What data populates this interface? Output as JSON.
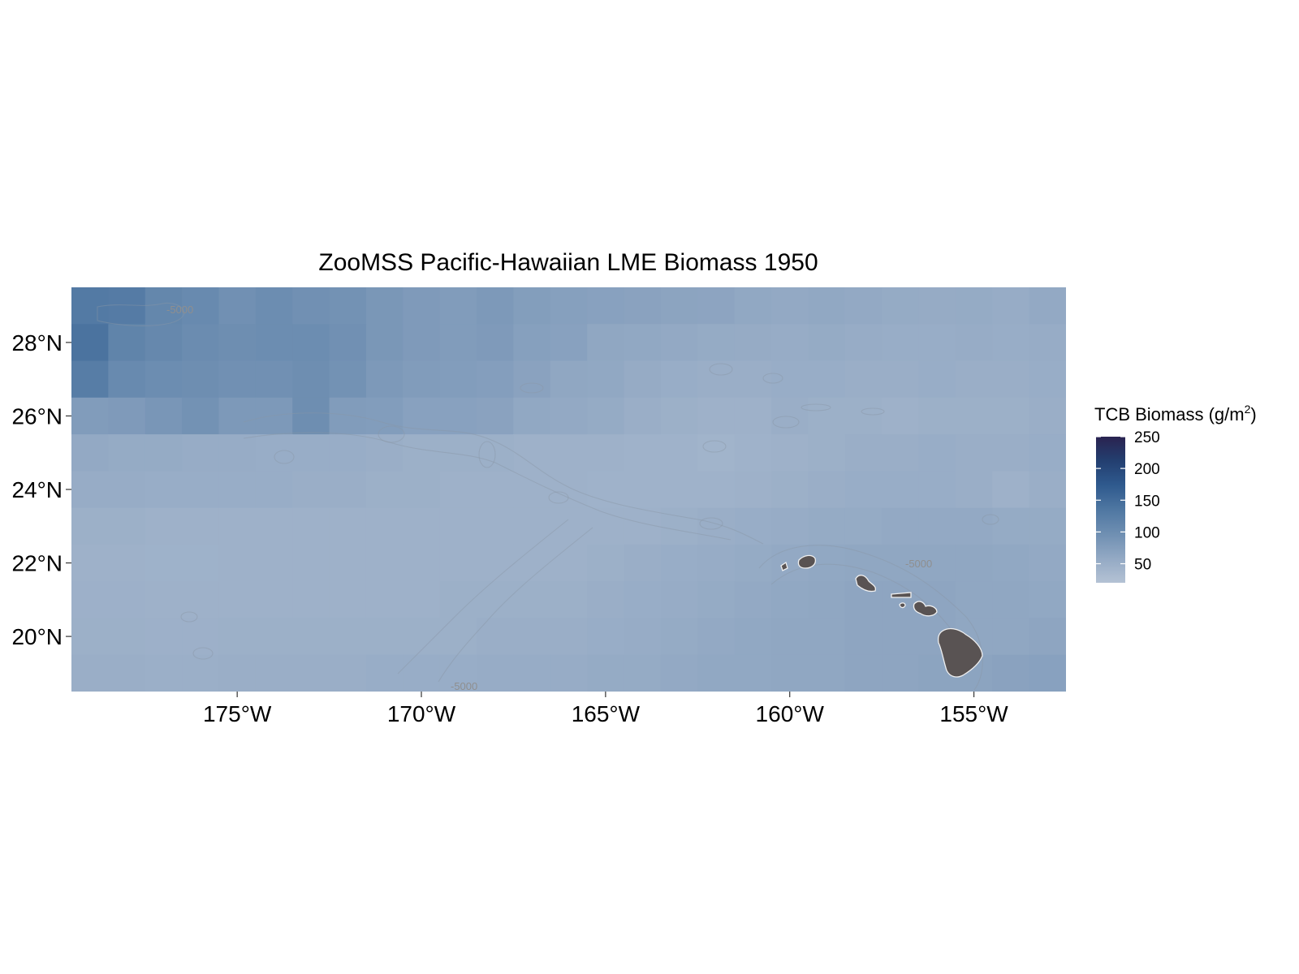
{
  "chart_data": {
    "type": "heatmap",
    "title": "ZooMSS Pacific-Hawaiian LME Biomass 1950",
    "xlabel": "",
    "ylabel": "",
    "xlim": [
      -179.5,
      -152.5
    ],
    "ylim": [
      18.5,
      29.5
    ],
    "x_ticks": [
      -175,
      -170,
      -165,
      -160,
      -155
    ],
    "x_tick_labels": [
      "175°W",
      "170°W",
      "165°W",
      "160°W",
      "155°W"
    ],
    "y_ticks": [
      20,
      22,
      24,
      26,
      28
    ],
    "y_tick_labels": [
      "20°N",
      "22°N",
      "24°N",
      "26°N",
      "28°N"
    ],
    "grid": false,
    "legend": {
      "title": "TCB Biomass (g/m",
      "title_superscript": "2",
      "title_suffix": ")",
      "placement": "right",
      "range": [
        20,
        250
      ],
      "breaks": [
        50,
        100,
        150,
        200,
        250
      ],
      "break_labels": [
        "50",
        "100",
        "150",
        "200",
        "250"
      ],
      "colors": [
        "#b4c2d4",
        "#93a9c4",
        "#6f8fb2",
        "#4f77a2",
        "#2f5a8e",
        "#233f70",
        "#2a2350"
      ]
    },
    "contour_labels": [
      "-5000",
      "-5000",
      "-5000"
    ],
    "land_color": "#595353",
    "cell_size_deg": 1,
    "rows": [
      {
        "lat": 29,
        "values": [
          130,
          128,
          110,
          105,
          95,
          100,
          95,
          92,
          85,
          80,
          78,
          82,
          75,
          72,
          70,
          68,
          66,
          65,
          60,
          58,
          60,
          58,
          56,
          55,
          56,
          54,
          58
        ]
      },
      {
        "lat": 28,
        "values": [
          140,
          115,
          108,
          102,
          98,
          100,
          100,
          95,
          85,
          80,
          78,
          80,
          72,
          70,
          62,
          60,
          58,
          56,
          55,
          54,
          56,
          54,
          52,
          52,
          54,
          52,
          54
        ]
      },
      {
        "lat": 27,
        "values": [
          125,
          105,
          100,
          98,
          95,
          95,
          98,
          92,
          82,
          78,
          76,
          74,
          68,
          62,
          60,
          55,
          52,
          50,
          50,
          52,
          52,
          50,
          50,
          52,
          50,
          50,
          52
        ]
      },
      {
        "lat": 26,
        "values": [
          78,
          80,
          86,
          92,
          82,
          82,
          98,
          78,
          76,
          70,
          70,
          68,
          60,
          58,
          56,
          50,
          48,
          46,
          46,
          50,
          48,
          48,
          46,
          48,
          48,
          48,
          50
        ]
      },
      {
        "lat": 25,
        "values": [
          58,
          56,
          56,
          54,
          54,
          52,
          52,
          52,
          50,
          48,
          48,
          48,
          46,
          46,
          46,
          44,
          44,
          42,
          44,
          46,
          48,
          50,
          50,
          52,
          50,
          50,
          52
        ]
      },
      {
        "lat": 24,
        "values": [
          54,
          54,
          52,
          52,
          52,
          52,
          50,
          50,
          48,
          48,
          46,
          46,
          46,
          46,
          44,
          44,
          44,
          44,
          46,
          48,
          50,
          52,
          52,
          52,
          50,
          46,
          50
        ]
      },
      {
        "lat": 23,
        "values": [
          48,
          48,
          46,
          46,
          46,
          46,
          46,
          46,
          46,
          46,
          46,
          46,
          46,
          46,
          46,
          46,
          48,
          50,
          52,
          54,
          56,
          56,
          58,
          58,
          58,
          56,
          56
        ]
      },
      {
        "lat": 22,
        "values": [
          46,
          46,
          45,
          45,
          46,
          46,
          46,
          46,
          46,
          46,
          46,
          46,
          46,
          46,
          48,
          50,
          52,
          54,
          56,
          58,
          60,
          62,
          62,
          62,
          62,
          60,
          58
        ]
      },
      {
        "lat": 21,
        "values": [
          47,
          47,
          46,
          46,
          46,
          46,
          46,
          46,
          46,
          46,
          48,
          48,
          48,
          48,
          50,
          52,
          54,
          56,
          58,
          60,
          62,
          64,
          64,
          64,
          62,
          62,
          60
        ]
      },
      {
        "lat": 20,
        "values": [
          48,
          48,
          47,
          47,
          48,
          48,
          48,
          48,
          48,
          48,
          48,
          50,
          50,
          50,
          52,
          54,
          56,
          58,
          60,
          62,
          62,
          64,
          64,
          64,
          62,
          62,
          64
        ]
      },
      {
        "lat": 19,
        "values": [
          50,
          50,
          49,
          49,
          50,
          50,
          50,
          50,
          52,
          52,
          52,
          54,
          54,
          54,
          56,
          56,
          58,
          60,
          60,
          62,
          62,
          64,
          64,
          66,
          66,
          68,
          70
        ]
      }
    ]
  }
}
